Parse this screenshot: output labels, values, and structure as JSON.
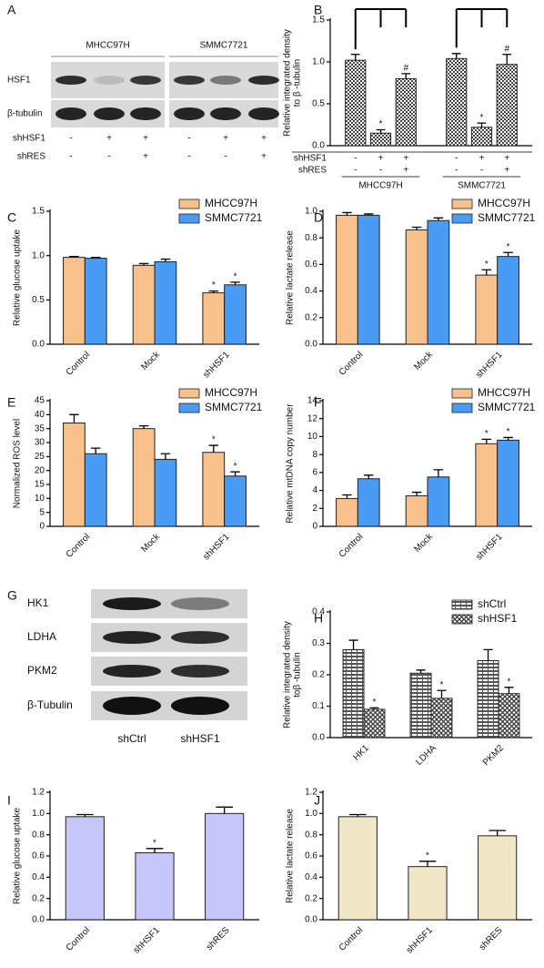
{
  "chart_data": [
    {
      "type": "bar",
      "panel": "B",
      "y_label": [
        "Relative integrated density",
        "to β -tubulin"
      ],
      "groups": [
        "MHCC97H",
        "SMMC7721"
      ],
      "rows": [
        {
          "label": "shHSF1",
          "signs": [
            "-",
            "+",
            "+",
            "-",
            "+",
            "+"
          ]
        },
        {
          "label": "shRES",
          "signs": [
            "-",
            "-",
            "+",
            "-",
            "-",
            "+"
          ]
        }
      ],
      "series": [
        {
          "color": "#444444",
          "pattern": "checker",
          "values": [
            1.02,
            0.15,
            0.8,
            1.04,
            0.22,
            0.97
          ],
          "errors": [
            0.07,
            0.04,
            0.06,
            0.06,
            0.05,
            0.12
          ],
          "marks": [
            null,
            "*",
            "#",
            null,
            "*",
            "#"
          ]
        }
      ],
      "ylim": [
        0,
        1.5
      ],
      "yticks": [
        {
          "value": 0,
          "label": "0.0"
        },
        {
          "value": 0.5,
          "label": "0.5"
        },
        {
          "value": 1,
          "label": "1.0"
        },
        {
          "value": 1.5,
          "label": "1.5"
        }
      ]
    },
    {
      "type": "bar",
      "panel": "C",
      "y_label": "Relative glucose uptake",
      "categories": [
        "Control",
        "Mock",
        "shHSF1"
      ],
      "legend": "top-right",
      "series": [
        {
          "name": "MHCC97H",
          "color": "#f8c08a",
          "values": [
            0.98,
            0.89,
            0.58
          ],
          "errors": [
            0.01,
            0.02,
            0.02
          ],
          "marks": [
            null,
            null,
            "*"
          ]
        },
        {
          "name": "SMMC7721",
          "color": "#4a9bf3",
          "values": [
            0.97,
            0.93,
            0.67
          ],
          "errors": [
            0.01,
            0.03,
            0.03
          ],
          "marks": [
            null,
            null,
            "*"
          ]
        }
      ],
      "ylim": [
        0,
        1.5
      ],
      "yticks": [
        {
          "value": 0,
          "label": "0.0"
        },
        {
          "value": 0.5,
          "label": "0.5"
        },
        {
          "value": 1,
          "label": "1.0"
        },
        {
          "value": 1.5,
          "label": "1.5"
        }
      ]
    },
    {
      "type": "bar",
      "panel": "D",
      "y_label": "Relative lactate release",
      "categories": [
        "Control",
        "Mock",
        "shHSF1"
      ],
      "legend": "top-right",
      "series": [
        {
          "name": "MHCC97H",
          "color": "#f8c08a",
          "values": [
            0.97,
            0.86,
            0.52
          ],
          "errors": [
            0.02,
            0.02,
            0.04
          ],
          "marks": [
            null,
            null,
            "*"
          ]
        },
        {
          "name": "SMMC7721",
          "color": "#4a9bf3",
          "values": [
            0.97,
            0.93,
            0.66
          ],
          "errors": [
            0.01,
            0.02,
            0.03
          ],
          "marks": [
            null,
            null,
            "*"
          ]
        }
      ],
      "ylim": [
        0,
        1
      ],
      "yticks": [
        {
          "value": 0,
          "label": "0.0"
        },
        {
          "value": 0.2,
          "label": "0.2"
        },
        {
          "value": 0.4,
          "label": "0.4"
        },
        {
          "value": 0.6,
          "label": "0.6"
        },
        {
          "value": 0.8,
          "label": "0.8"
        },
        {
          "value": 1,
          "label": "1.0"
        }
      ]
    },
    {
      "type": "bar",
      "panel": "E",
      "y_label": "Normalized ROS level",
      "categories": [
        "Control",
        "Mock",
        "shHSF1"
      ],
      "legend": "top-right",
      "series": [
        {
          "name": "MHCC97H",
          "color": "#f8c08a",
          "values": [
            37,
            35,
            26.5
          ],
          "errors": [
            3,
            1,
            2.5
          ],
          "marks": [
            null,
            null,
            "*"
          ]
        },
        {
          "name": "SMMC7721",
          "color": "#4a9bf3",
          "values": [
            26,
            24,
            18
          ],
          "errors": [
            2,
            2,
            1.5
          ],
          "marks": [
            null,
            null,
            "*"
          ]
        }
      ],
      "ylim": [
        0,
        45
      ],
      "yticks": [
        0,
        5,
        10,
        15,
        20,
        25,
        30,
        35,
        40,
        45
      ]
    },
    {
      "type": "bar",
      "panel": "F",
      "y_label": "Relative mtDNA copy number",
      "categories": [
        "Control",
        "Mock",
        "shHSF1"
      ],
      "legend": "top-right",
      "series": [
        {
          "name": "MHCC97H",
          "color": "#f8c08a",
          "values": [
            3.1,
            3.4,
            9.2
          ],
          "errors": [
            0.4,
            0.4,
            0.5
          ],
          "marks": [
            null,
            null,
            "*"
          ]
        },
        {
          "name": "SMMC7721",
          "color": "#4a9bf3",
          "values": [
            5.3,
            5.5,
            9.6
          ],
          "errors": [
            0.4,
            0.8,
            0.3
          ],
          "marks": [
            null,
            null,
            "*"
          ]
        }
      ],
      "ylim": [
        0,
        14
      ],
      "yticks": [
        0,
        2,
        4,
        6,
        8,
        10,
        12,
        14
      ]
    },
    {
      "type": "bar",
      "panel": "H",
      "y_label": [
        "Relative integrated density",
        "toβ -tubulin"
      ],
      "categories": [
        "HK1",
        "LDHA",
        "PKM2"
      ],
      "legend": "top-right",
      "series": [
        {
          "name": "shCtrl",
          "color": "#333333",
          "pattern": "brick",
          "values": [
            0.28,
            0.205,
            0.245
          ],
          "errors": [
            0.03,
            0.01,
            0.035
          ],
          "marks": [
            null,
            null,
            null
          ]
        },
        {
          "name": "shHSF1",
          "color": "#333333",
          "pattern": "cross",
          "values": [
            0.09,
            0.125,
            0.14
          ],
          "errors": [
            0.005,
            0.025,
            0.02
          ],
          "marks": [
            "*",
            "*",
            "*"
          ]
        }
      ],
      "ylim": [
        0,
        0.4
      ],
      "yticks": [
        {
          "value": 0,
          "label": "0.0"
        },
        0.1,
        0.2,
        0.3,
        0.4
      ]
    },
    {
      "type": "bar",
      "panel": "I",
      "y_label": "Relative glucose uptake",
      "categories": [
        "Control",
        "shHSF1",
        "shRES"
      ],
      "series": [
        {
          "color": "#c6c6f8",
          "values": [
            0.97,
            0.63,
            1.0
          ],
          "errors": [
            0.02,
            0.04,
            0.06
          ],
          "marks": [
            null,
            "*",
            null
          ]
        }
      ],
      "ylim": [
        0,
        1.2
      ],
      "yticks": [
        {
          "value": 0,
          "label": "0.0"
        },
        0.2,
        0.4,
        0.6,
        0.8,
        {
          "value": 1,
          "label": "1.0"
        },
        1.2
      ]
    },
    {
      "type": "bar",
      "panel": "J",
      "y_label": "Relative lactate release",
      "categories": [
        "Control",
        "shHSF1",
        "shRES"
      ],
      "series": [
        {
          "color": "#f0e7c6",
          "values": [
            0.97,
            0.5,
            0.79
          ],
          "errors": [
            0.02,
            0.05,
            0.05
          ],
          "marks": [
            null,
            "*",
            null
          ]
        }
      ],
      "ylim": [
        0,
        1.2
      ],
      "yticks": [
        {
          "value": 0,
          "label": "0.0"
        },
        0.2,
        0.4,
        0.6,
        0.8,
        {
          "value": 1,
          "label": "1.0"
        },
        1.2
      ]
    }
  ],
  "blots": [
    {
      "panel": "A",
      "groups": [
        "MHCC97H",
        "SMMC7721"
      ],
      "rows": [
        "HSF1",
        "β-tubulin"
      ],
      "conditions": [
        {
          "label": "shHSF1",
          "signs": [
            "-",
            "+",
            "+",
            "-",
            "+",
            "+"
          ]
        },
        {
          "label": "shRES",
          "signs": [
            "-",
            "-",
            "+",
            "-",
            "-",
            "+"
          ]
        }
      ]
    },
    {
      "panel": "G",
      "rows": [
        "HK1",
        "LDHA",
        "PKM2",
        "β-Tubulin"
      ],
      "lanes": [
        "shCtrl",
        "shHSF1"
      ]
    }
  ]
}
